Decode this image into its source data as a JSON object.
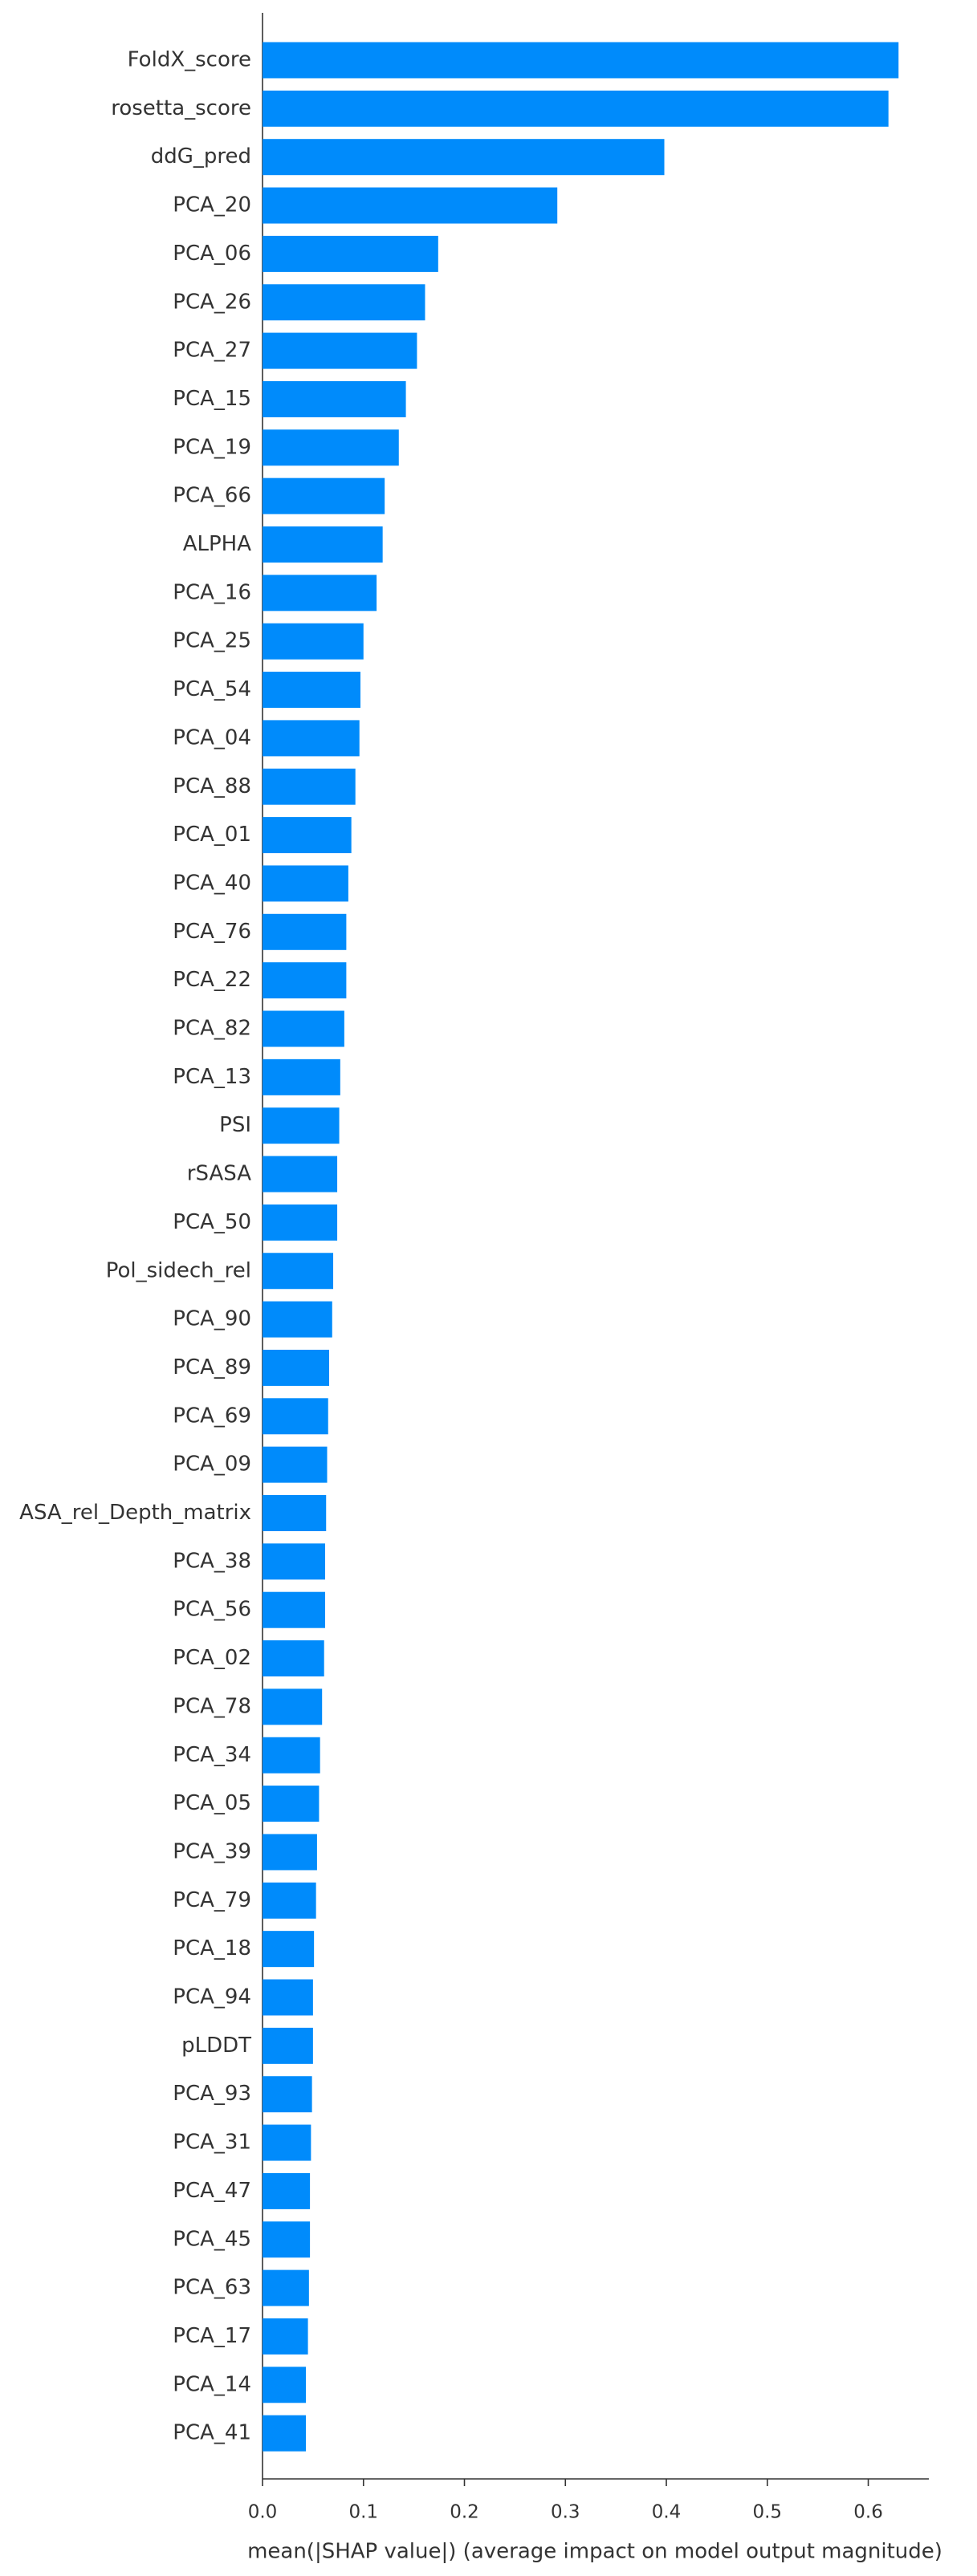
{
  "chart_data": {
    "type": "barh",
    "x_label": "mean(|SHAP value|) (average impact on model output magnitude)",
    "color": "#008bfb",
    "categories": [
      "FoldX_score",
      "rosetta_score",
      "ddG_pred",
      "PCA_20",
      "PCA_06",
      "PCA_26",
      "PCA_27",
      "PCA_15",
      "PCA_19",
      "PCA_66",
      "ALPHA",
      "PCA_16",
      "PCA_25",
      "PCA_54",
      "PCA_04",
      "PCA_88",
      "PCA_01",
      "PCA_40",
      "PCA_76",
      "PCA_22",
      "PCA_82",
      "PCA_13",
      "PSI",
      "rSASA",
      "PCA_50",
      "Pol_sidech_rel",
      "PCA_90",
      "PCA_89",
      "PCA_69",
      "PCA_09",
      "ASA_rel_Depth_matrix",
      "PCA_38",
      "PCA_56",
      "PCA_02",
      "PCA_78",
      "PCA_34",
      "PCA_05",
      "PCA_39",
      "PCA_79",
      "PCA_18",
      "PCA_94",
      "pLDDT",
      "PCA_93",
      "PCA_31",
      "PCA_47",
      "PCA_45",
      "PCA_63",
      "PCA_17",
      "PCA_14",
      "PCA_41"
    ],
    "values": [
      0.63,
      0.62,
      0.398,
      0.292,
      0.174,
      0.161,
      0.153,
      0.142,
      0.135,
      0.121,
      0.119,
      0.113,
      0.1,
      0.097,
      0.096,
      0.092,
      0.088,
      0.085,
      0.083,
      0.083,
      0.081,
      0.077,
      0.076,
      0.074,
      0.074,
      0.07,
      0.069,
      0.066,
      0.065,
      0.064,
      0.063,
      0.062,
      0.062,
      0.061,
      0.059,
      0.057,
      0.056,
      0.054,
      0.053,
      0.051,
      0.05,
      0.05,
      0.049,
      0.048,
      0.047,
      0.047,
      0.046,
      0.045,
      0.043,
      0.043
    ],
    "xlim": [
      0,
      0.66
    ],
    "xticks": [
      {
        "value": 0,
        "label": "0.0"
      },
      0.1,
      0.2,
      0.3,
      0.4,
      0.5,
      0.6
    ]
  }
}
